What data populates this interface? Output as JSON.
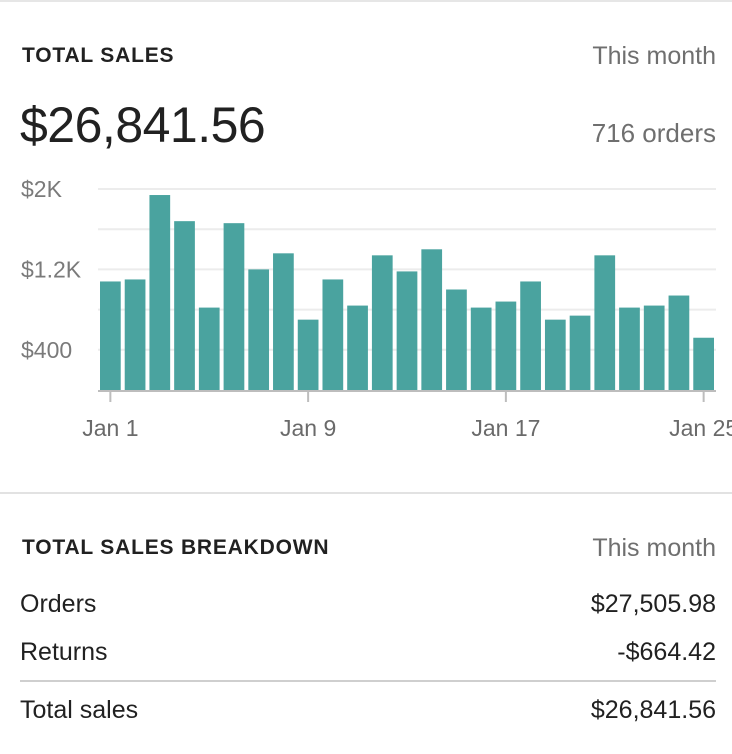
{
  "sales": {
    "title": "TOTAL SALES",
    "period": "This month",
    "total": "$26,841.56",
    "orders_count": "716 orders"
  },
  "chart_data": {
    "type": "bar",
    "title": "",
    "xlabel": "",
    "ylabel": "",
    "color": "#4aa39f",
    "categories": [
      "Jan 1",
      "Jan 2",
      "Jan 3",
      "Jan 4",
      "Jan 5",
      "Jan 6",
      "Jan 7",
      "Jan 8",
      "Jan 9",
      "Jan 10",
      "Jan 11",
      "Jan 12",
      "Jan 13",
      "Jan 14",
      "Jan 15",
      "Jan 16",
      "Jan 17",
      "Jan 18",
      "Jan 19",
      "Jan 20",
      "Jan 21",
      "Jan 22",
      "Jan 23",
      "Jan 24",
      "Jan 25"
    ],
    "values": [
      1080,
      1100,
      1940,
      1680,
      820,
      1660,
      1200,
      1360,
      700,
      1100,
      840,
      1340,
      1180,
      1400,
      1000,
      820,
      880,
      1080,
      700,
      740,
      1340,
      820,
      840,
      940,
      520
    ],
    "ylim": [
      0,
      2000
    ],
    "y_ticks": [
      {
        "value": 400,
        "label": "$400"
      },
      {
        "value": 1200,
        "label": "$1.2K"
      },
      {
        "value": 2000,
        "label": "$2K"
      }
    ],
    "x_ticks": [
      {
        "index": 0,
        "label": "Jan 1"
      },
      {
        "index": 8,
        "label": "Jan 9"
      },
      {
        "index": 16,
        "label": "Jan 17"
      },
      {
        "index": 24,
        "label": "Jan 25"
      }
    ],
    "grid": true
  },
  "breakdown": {
    "title": "TOTAL SALES BREAKDOWN",
    "period": "This month",
    "rows": [
      {
        "label": "Orders",
        "value": "$27,505.98"
      },
      {
        "label": "Returns",
        "value": "-$664.42"
      }
    ],
    "total": {
      "label": "Total sales",
      "value": "$26,841.56"
    }
  }
}
